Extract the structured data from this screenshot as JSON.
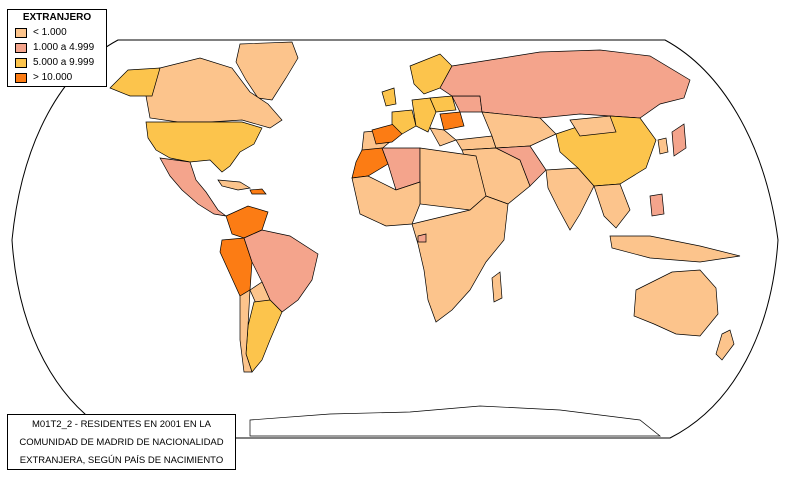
{
  "legend": {
    "title": "EXTRANJERO",
    "items": [
      {
        "label": "< 1.000",
        "color": "#fcc48c"
      },
      {
        "label": "1.000 a 4.999",
        "color": "#f4a48c"
      },
      {
        "label": "5.000 a 9.999",
        "color": "#fcc44c"
      },
      {
        "label": "> 10.000",
        "color": "#fc7c14"
      }
    ]
  },
  "caption": {
    "lines": [
      "M01T2_2 - RESIDENTES EN 2001 EN LA",
      "COMUNIDAD DE MADRID DE NACIONALIDAD",
      "EXTRANJERA, SEGÚN PAÍS DE NACIMIENTO"
    ]
  }
}
